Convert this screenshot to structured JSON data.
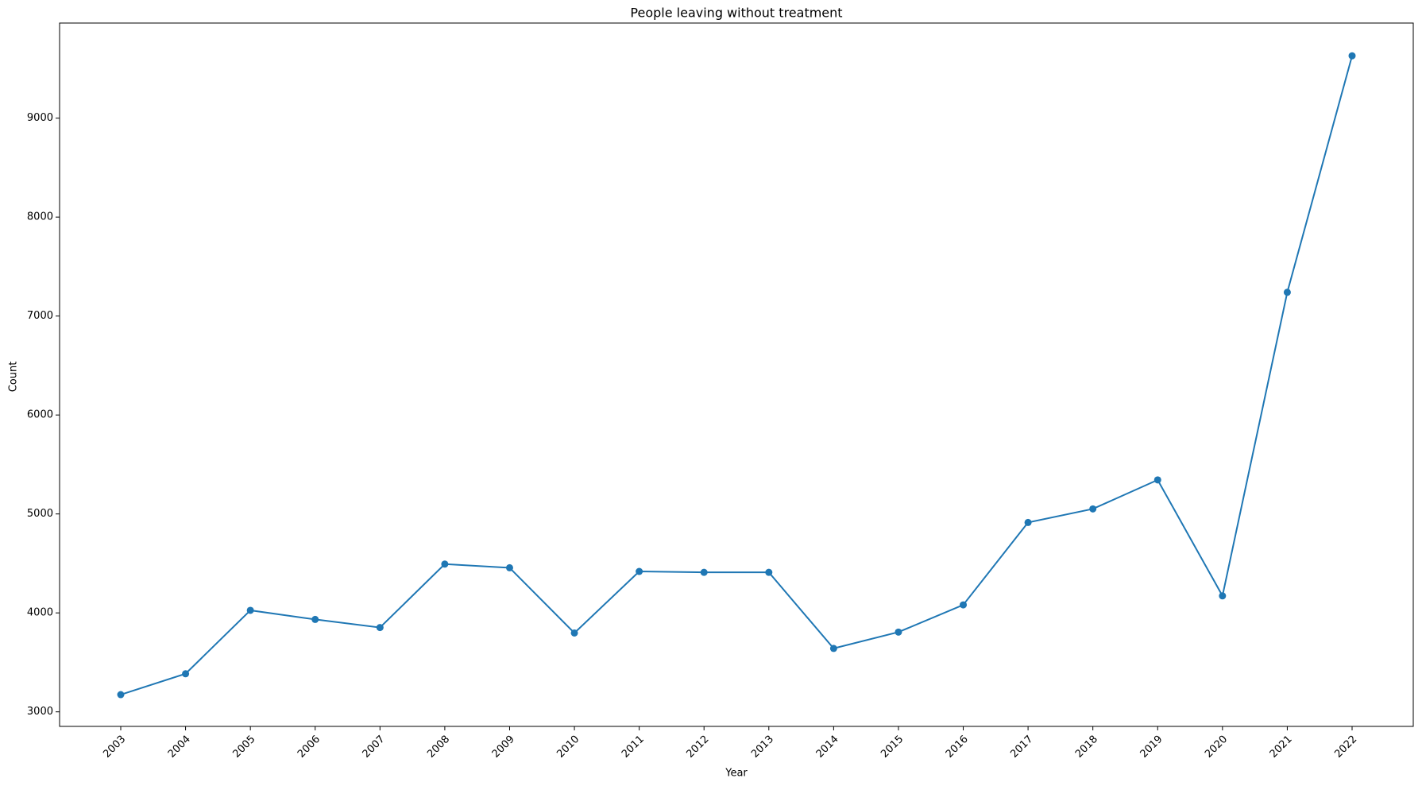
{
  "chart_data": {
    "type": "line",
    "title": "People leaving without treatment",
    "x_label": "Year",
    "y_label": "Count",
    "categories": [
      "2003",
      "2004",
      "2005",
      "2006",
      "2007",
      "2008",
      "2009",
      "2010",
      "2011",
      "2012",
      "2013",
      "2014",
      "2015",
      "2016",
      "2017",
      "2018",
      "2019",
      "2020",
      "2021",
      "2022"
    ],
    "values": [
      3174,
      3385,
      4026,
      3934,
      3852,
      4493,
      4456,
      3797,
      4419,
      4410,
      4410,
      3641,
      3806,
      4081,
      4914,
      5051,
      5344,
      4172,
      7240,
      9630
    ],
    "color": "#1f77b4",
    "markers": true,
    "grid": false,
    "ylim": [
      2853,
      9961
    ],
    "yticks": [
      3000,
      4000,
      5000,
      6000,
      7000,
      8000,
      9000
    ]
  }
}
